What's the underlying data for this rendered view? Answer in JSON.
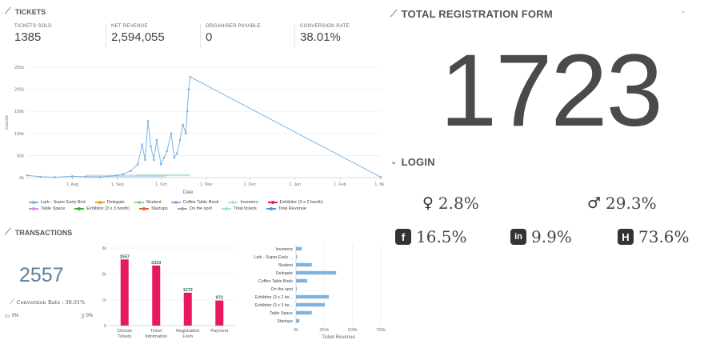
{
  "tickets": {
    "title": "TICKETS",
    "stats": [
      {
        "label": "TICKETS SOLD",
        "value": "1385"
      },
      {
        "label": "NET REVENUE",
        "value": "2,594,055"
      },
      {
        "label": "ORGANISER PAYABLE",
        "value": "0"
      },
      {
        "label": "CONVERSION RATE",
        "value": "38.01%"
      }
    ]
  },
  "colors": {
    "line": "#7fb3df",
    "bar_red": "#e8185e",
    "bar_blue": "#7fb3df",
    "axis": "#999999"
  },
  "legend": [
    {
      "name": "Lark - Super Early Bird",
      "color": "#7fb3df"
    },
    {
      "name": "Delegate",
      "color": "#e8a33a"
    },
    {
      "name": "Student",
      "color": "#8fd18f"
    },
    {
      "name": "Coffee Table Book",
      "color": "#9ea7e6"
    },
    {
      "name": "Investors",
      "color": "#a8e0e0"
    },
    {
      "name": "Exhibitor (3 x 2 booth)",
      "color": "#e81e3c"
    },
    {
      "name": "Table Space",
      "color": "#d98ed9"
    },
    {
      "name": "Exhibitor (3 x 3 booth)",
      "color": "#3caa3c"
    },
    {
      "name": "Startups",
      "color": "#e85f3c"
    },
    {
      "name": "On the spot",
      "color": "#9ea7b0"
    },
    {
      "name": "Total tickets",
      "color": "#a8e0d0"
    },
    {
      "name": "Total Revenue",
      "color": "#5c8fc7"
    }
  ],
  "transactions": {
    "title": "TRANSACTIONS",
    "count": "2557",
    "conversion": "Conversion Rate : 38.01%",
    "desktop": "0%",
    "mobile": "0%"
  },
  "registration": {
    "title": "TOTAL REGISTRATION FORM",
    "value": "1723"
  },
  "login": {
    "title": "LOGIN",
    "female": "2.8%",
    "male": "29.3%",
    "facebook": "16.5%",
    "linkedin": "9.9%",
    "other": "73.6%",
    "icons": {
      "facebook": "facebook-icon",
      "linkedin": "linkedin-icon",
      "other": "h-icon",
      "female": "female-icon",
      "male": "male-icon"
    },
    "linkedin_glyph": "in",
    "facebook_glyph": "f",
    "other_glyph": "H"
  },
  "chart_data": [
    {
      "type": "line",
      "xlabel": "Date",
      "ylabel": "Counts",
      "ylim": [
        0,
        250000
      ],
      "yticks": [
        "0k",
        "50k",
        "100k",
        "150k",
        "200k",
        "250k"
      ],
      "xticks": [
        "1. Aug",
        "1. Sep",
        "1. Oct",
        "1. Nov",
        "1. Dec",
        "1. Jan",
        "1. Feb",
        "1. Mar"
      ],
      "series": [
        {
          "name": "Total Revenue",
          "x": [
            "1. Jul",
            "10. Jul",
            "20. Jul",
            "1. Aug",
            "10. Aug",
            "20. Aug",
            "1. Sep",
            "5. Sep",
            "10. Sep",
            "15. Sep",
            "18. Sep",
            "20. Sep",
            "22. Sep",
            "24. Sep",
            "26. Sep",
            "28. Sep",
            "1. Oct",
            "3. Oct",
            "5. Oct",
            "8. Oct",
            "10. Oct",
            "12. Oct",
            "14. Oct",
            "16. Oct",
            "18. Oct",
            "19. Oct",
            "20. Oct",
            "21. Oct",
            "1. Mar"
          ],
          "y": [
            5000,
            2000,
            1000,
            3000,
            2000,
            1000,
            5000,
            8000,
            15000,
            30000,
            75000,
            40000,
            128000,
            70000,
            40000,
            85000,
            30000,
            45000,
            60000,
            100000,
            45000,
            55000,
            85000,
            120000,
            100000,
            150000,
            200000,
            228000,
            1000
          ]
        }
      ]
    },
    {
      "type": "bar",
      "categories": [
        "Choose Tickets",
        "Ticket Information",
        "Registration Form",
        "Payment"
      ],
      "values": [
        2557,
        2323,
        1272,
        972
      ],
      "ylim": [
        0,
        3000
      ],
      "yticks": [
        "0",
        "1k",
        "2k",
        "3k"
      ]
    },
    {
      "type": "bar",
      "orientation": "horizontal",
      "xlabel": "Ticket Revenue",
      "xlim": [
        0,
        750000
      ],
      "xticks": [
        "0k",
        "250k",
        "500k",
        "750k"
      ],
      "categories": [
        "Investors",
        "Lark - Super Early ...",
        "Student",
        "Delegate",
        "Coffee Table Book",
        "On the spot",
        "Exhibitor (3 x 2 bo...",
        "Exhibitor (3 x 3 bo...",
        "Table Space",
        "Startups"
      ],
      "values": [
        50000,
        10000,
        140000,
        355000,
        100000,
        5000,
        290000,
        255000,
        140000,
        30000
      ]
    }
  ]
}
